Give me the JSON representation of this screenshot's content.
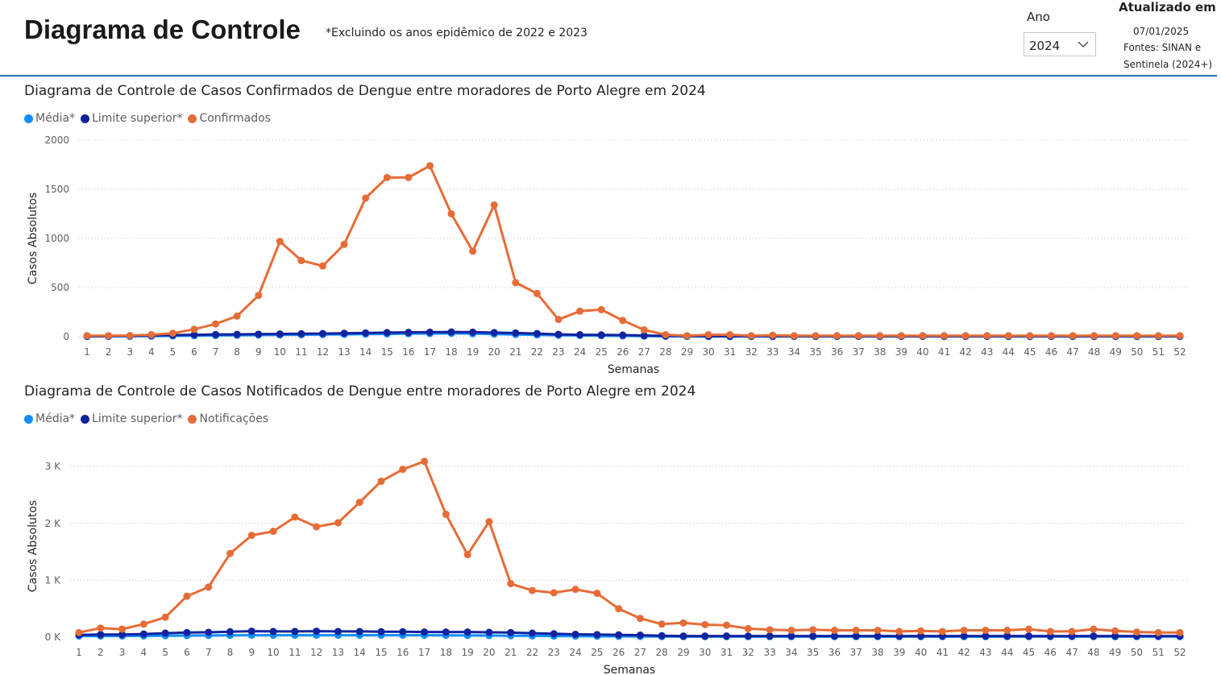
{
  "header": {
    "title": "Diagrama de Controle",
    "note": "*Excluindo os anos epidêmico de 2022 e 2023",
    "year_label": "Ano",
    "year_value": "2024",
    "updated_title": "Atualizado em",
    "updated_date": "07/01/2025",
    "sources_line1": "Fontes: SINAN e",
    "sources_line2": "Sentinela (2024+)"
  },
  "colors": {
    "media": "#118dff",
    "limite": "#12239e",
    "serie": "#e66c37",
    "header_rule": "#2f6fb5"
  },
  "chart_data": [
    {
      "type": "line",
      "title": "Diagrama de Controle de Casos Confirmados de Dengue entre moradores de Porto Alegre em 2024",
      "xlabel": "Semanas",
      "ylabel": "Casos Absolutos",
      "ylim": [
        0,
        2000
      ],
      "yticks": [
        0,
        500,
        1000,
        1500,
        2000
      ],
      "ytick_labels": [
        "0",
        "500",
        "1000",
        "1500",
        "2000"
      ],
      "grid": true,
      "legend_position": "top-left",
      "x": [
        1,
        2,
        3,
        4,
        5,
        6,
        7,
        8,
        9,
        10,
        11,
        12,
        13,
        14,
        15,
        16,
        17,
        18,
        19,
        20,
        21,
        22,
        23,
        24,
        25,
        26,
        27,
        28,
        29,
        30,
        31,
        32,
        33,
        34,
        35,
        36,
        37,
        38,
        39,
        40,
        41,
        42,
        43,
        44,
        45,
        46,
        47,
        48,
        49,
        50,
        51,
        52
      ],
      "series": [
        {
          "name": "Média*",
          "values": [
            2,
            3,
            4,
            6,
            8,
            10,
            12,
            14,
            16,
            18,
            20,
            22,
            24,
            26,
            28,
            30,
            32,
            34,
            30,
            26,
            22,
            18,
            14,
            12,
            10,
            8,
            6,
            4,
            3,
            2,
            2,
            2,
            2,
            2,
            2,
            2,
            2,
            2,
            2,
            2,
            2,
            2,
            2,
            2,
            2,
            2,
            2,
            2,
            2,
            2,
            2,
            2
          ]
        },
        {
          "name": "Limite superior*",
          "values": [
            5,
            6,
            8,
            12,
            16,
            20,
            22,
            24,
            26,
            28,
            30,
            32,
            35,
            38,
            42,
            44,
            46,
            48,
            46,
            42,
            38,
            32,
            24,
            20,
            18,
            16,
            12,
            8,
            6,
            5,
            5,
            5,
            5,
            5,
            5,
            5,
            5,
            5,
            5,
            5,
            5,
            5,
            5,
            5,
            5,
            5,
            5,
            5,
            5,
            5,
            5,
            5
          ]
        },
        {
          "name": "Confirmados",
          "values": [
            10,
            10,
            12,
            20,
            35,
            75,
            130,
            210,
            420,
            970,
            775,
            720,
            940,
            1410,
            1620,
            1620,
            1740,
            1250,
            870,
            1340,
            550,
            440,
            175,
            260,
            275,
            165,
            70,
            20,
            10,
            20,
            20,
            10,
            15,
            10,
            10,
            10,
            10,
            10,
            10,
            10,
            10,
            10,
            10,
            10,
            10,
            10,
            10,
            10,
            10,
            10,
            10,
            10
          ]
        }
      ]
    },
    {
      "type": "line",
      "title": "Diagrama de Controle de Casos Notificados de Dengue entre moradores de Porto Alegre em 2024",
      "xlabel": "Semanas",
      "ylabel": "Casos Absolutos",
      "ylim": [
        0,
        3200
      ],
      "yticks": [
        0,
        1000,
        2000,
        3000
      ],
      "ytick_labels": [
        "0 K",
        "1 K",
        "2 K",
        "3 K"
      ],
      "grid": true,
      "legend_position": "top-left",
      "x": [
        1,
        2,
        3,
        4,
        5,
        6,
        7,
        8,
        9,
        10,
        11,
        12,
        13,
        14,
        15,
        16,
        17,
        18,
        19,
        20,
        21,
        22,
        23,
        24,
        25,
        26,
        27,
        28,
        29,
        30,
        31,
        32,
        33,
        34,
        35,
        36,
        37,
        38,
        39,
        40,
        41,
        42,
        43,
        44,
        45,
        46,
        47,
        48,
        49,
        50,
        51,
        52
      ],
      "series": [
        {
          "name": "Média*",
          "values": [
            20,
            20,
            20,
            22,
            25,
            28,
            30,
            32,
            34,
            34,
            34,
            34,
            34,
            34,
            34,
            34,
            34,
            32,
            30,
            28,
            25,
            22,
            20,
            18,
            16,
            14,
            12,
            10,
            8,
            8,
            8,
            8,
            8,
            8,
            8,
            8,
            8,
            8,
            8,
            8,
            8,
            8,
            8,
            8,
            8,
            8,
            8,
            8,
            8,
            8,
            8,
            8
          ]
        },
        {
          "name": "Limite superior*",
          "values": [
            40,
            45,
            45,
            55,
            70,
            80,
            85,
            95,
            105,
            100,
            100,
            105,
            100,
            100,
            95,
            95,
            90,
            90,
            90,
            85,
            80,
            70,
            60,
            50,
            45,
            40,
            35,
            25,
            20,
            20,
            20,
            20,
            20,
            20,
            20,
            20,
            20,
            20,
            20,
            20,
            20,
            20,
            20,
            20,
            20,
            20,
            20,
            20,
            20,
            20,
            20,
            20
          ]
        },
        {
          "name": "Notificações",
          "values": [
            80,
            160,
            140,
            230,
            350,
            720,
            880,
            1470,
            1790,
            1860,
            2110,
            1940,
            2010,
            2370,
            2740,
            2950,
            3090,
            2160,
            1450,
            2030,
            940,
            820,
            780,
            840,
            770,
            500,
            330,
            230,
            250,
            220,
            210,
            150,
            130,
            120,
            130,
            120,
            120,
            120,
            100,
            110,
            100,
            120,
            120,
            120,
            140,
            100,
            100,
            140,
            110,
            90,
            80,
            80
          ]
        }
      ]
    }
  ]
}
